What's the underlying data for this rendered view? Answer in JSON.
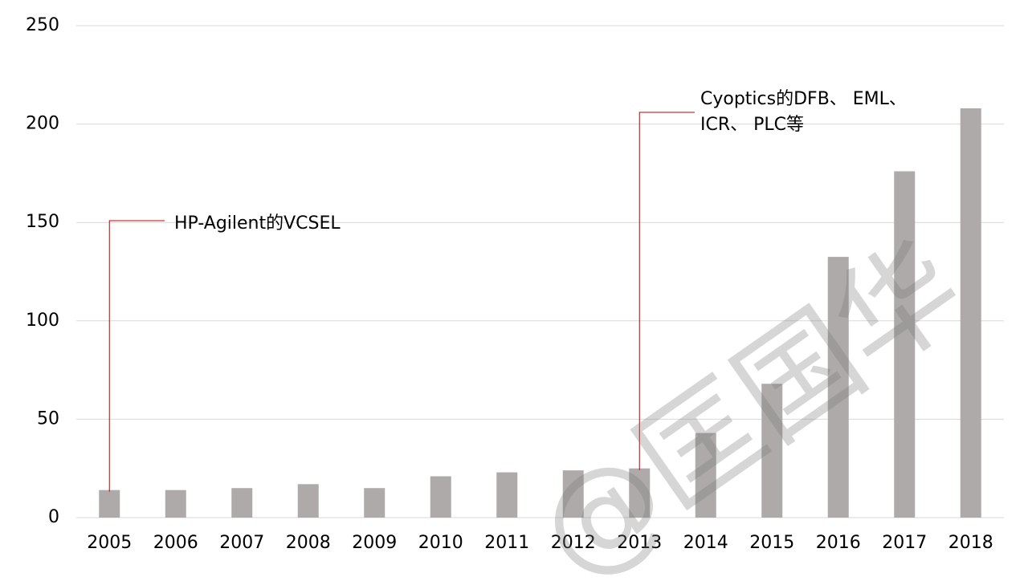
{
  "chart_data": {
    "type": "bar",
    "categories": [
      "2005",
      "2006",
      "2007",
      "2008",
      "2009",
      "2010",
      "2011",
      "2012",
      "2013",
      "2014",
      "2015",
      "2016",
      "2017",
      "2018"
    ],
    "values": [
      14,
      14,
      15,
      17,
      15,
      21,
      23,
      24,
      25,
      43,
      68,
      132.5,
      176,
      208
    ],
    "color": "#aeaaaa",
    "ylim": [
      0,
      250
    ],
    "yticks": [
      0,
      50,
      100,
      150,
      200,
      250
    ],
    "grid": true,
    "annotations": [
      {
        "lines": [
          "HP-Agilent的VCSEL"
        ]
      },
      {
        "lines": [
          "Cyoptics的DFB、 EML、",
          "ICR、 PLC等"
        ]
      }
    ],
    "watermark": "@匡国华"
  }
}
